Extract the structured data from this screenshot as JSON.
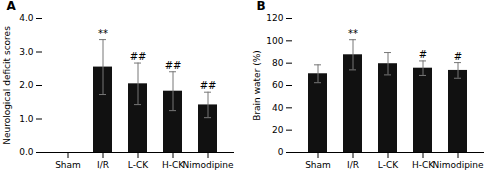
{
  "chart_data": [
    {
      "type": "bar",
      "title": "A",
      "categories": [
        "Sham",
        "I/R",
        "L-CK",
        "H-CK",
        "Nimodipine"
      ],
      "values": [
        0.0,
        2.55,
        2.05,
        1.83,
        1.42
      ],
      "errors": [
        0.0,
        0.82,
        0.62,
        0.58,
        0.38
      ],
      "ylabel": "Neurological deficit scores",
      "ylim": [
        0,
        4
      ],
      "yticks": [
        0,
        1,
        2,
        3,
        4
      ],
      "color": "#111111",
      "grid": false,
      "annotations": [
        {
          "text": "**",
          "x": "I/R"
        },
        {
          "text": "##",
          "x": "L-CK"
        },
        {
          "text": "##",
          "x": "H-CK"
        },
        {
          "text": "##",
          "x": "Nimodipine"
        }
      ]
    },
    {
      "type": "bar",
      "title": "B",
      "categories": [
        "Sham",
        "I/R",
        "L-CK",
        "H-CK",
        "Nimodipine"
      ],
      "values": [
        70.5,
        87.5,
        79.5,
        75.5,
        73.5
      ],
      "errors": [
        8.0,
        13.5,
        10.0,
        6.5,
        7.0
      ],
      "ylabel": "Brain water (%)",
      "ylim": [
        0,
        120
      ],
      "yticks": [
        0,
        20,
        40,
        60,
        80,
        100,
        120
      ],
      "color": "#111111",
      "grid": false,
      "annotations": [
        {
          "text": "**",
          "x": "I/R"
        },
        {
          "text": "#",
          "x": "H-CK"
        },
        {
          "text": "#",
          "x": "Nimodipine"
        }
      ]
    }
  ]
}
